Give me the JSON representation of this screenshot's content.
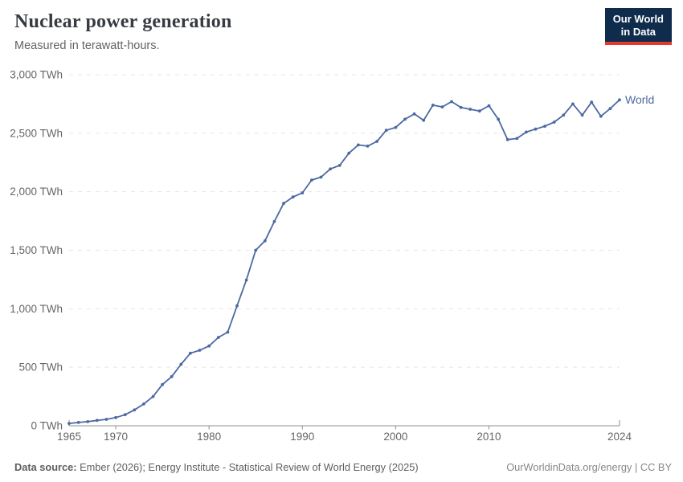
{
  "header": {
    "title": "Nuclear power generation",
    "subtitle": "Measured in terawatt-hours.",
    "logo": {
      "line1": "Our World",
      "line2": "in Data"
    }
  },
  "footer": {
    "source_label": "Data source:",
    "source_text": " Ember (2026); Energy Institute - Statistical Review of World Energy (2025)",
    "credit": "OurWorldinData.org/energy | CC BY"
  },
  "colors": {
    "accent_blue": "#4c69a1",
    "logo_navy": "#0f2c4d",
    "logo_red": "#e23a2e",
    "gridline": "#e5e5e5",
    "axis": "#8f8f8f",
    "tick_text": "#666666"
  },
  "chart_data": {
    "type": "line",
    "title": "Nuclear power generation",
    "unit": "TWh",
    "grid": "horizontal dashed",
    "legend": "end-of-line label",
    "ylim": [
      0,
      3000
    ],
    "x": [
      1965,
      1966,
      1967,
      1968,
      1969,
      1970,
      1971,
      1972,
      1973,
      1974,
      1975,
      1976,
      1977,
      1978,
      1979,
      1980,
      1981,
      1982,
      1983,
      1984,
      1985,
      1986,
      1987,
      1988,
      1989,
      1990,
      1991,
      1992,
      1993,
      1994,
      1995,
      1996,
      1997,
      1998,
      1999,
      2000,
      2001,
      2002,
      2003,
      2004,
      2005,
      2006,
      2007,
      2008,
      2009,
      2010,
      2011,
      2012,
      2013,
      2014,
      2015,
      2016,
      2017,
      2018,
      2019,
      2020,
      2021,
      2022,
      2023,
      2024
    ],
    "series": [
      {
        "name": "World",
        "values": [
          20,
          28,
          35,
          46,
          55,
          70,
          95,
          135,
          186,
          250,
          352,
          420,
          525,
          620,
          645,
          682,
          755,
          800,
          1025,
          1245,
          1500,
          1580,
          1745,
          1900,
          1955,
          1990,
          2100,
          2125,
          2195,
          2225,
          2330,
          2400,
          2390,
          2430,
          2525,
          2550,
          2620,
          2665,
          2610,
          2740,
          2725,
          2770,
          2720,
          2705,
          2690,
          2735,
          2620,
          2445,
          2455,
          2510,
          2535,
          2560,
          2595,
          2655,
          2750,
          2655,
          2765,
          2645,
          2710,
          2785
        ]
      }
    ],
    "y_ticks": [
      {
        "value": 0,
        "label": "0 TWh"
      },
      {
        "value": 500,
        "label": "500 TWh"
      },
      {
        "value": 1000,
        "label": "1,000 TWh"
      },
      {
        "value": 1500,
        "label": "1,500 TWh"
      },
      {
        "value": 2000,
        "label": "2,000 TWh"
      },
      {
        "value": 2500,
        "label": "2,500 TWh"
      },
      {
        "value": 3000,
        "label": "3,000 TWh"
      }
    ],
    "x_ticks": [
      1965,
      1970,
      1980,
      1990,
      2000,
      2010,
      2024
    ]
  }
}
